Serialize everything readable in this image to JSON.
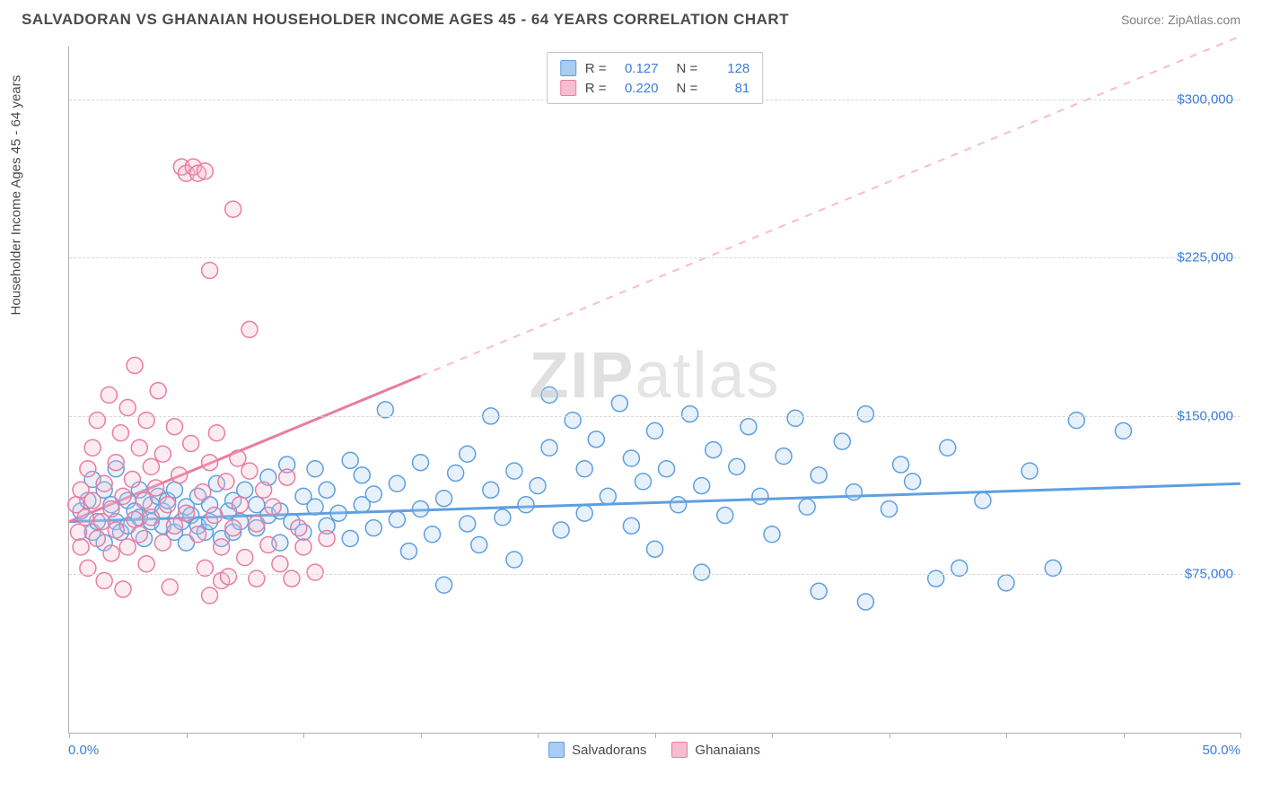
{
  "header": {
    "title": "SALVADORAN VS GHANAIAN HOUSEHOLDER INCOME AGES 45 - 64 YEARS CORRELATION CHART",
    "source": "Source: ZipAtlas.com"
  },
  "chart": {
    "type": "scatter",
    "ylabel": "Householder Income Ages 45 - 64 years",
    "watermark": "ZIPatlas",
    "background_color": "#ffffff",
    "grid_color": "#d8d8d8",
    "axis_color": "#b0b0b0",
    "tick_label_color": "#3b7dd8",
    "label_color": "#4a4a4a",
    "title_fontsize": 17,
    "label_fontsize": 15,
    "xlim": [
      0,
      50
    ],
    "ylim": [
      0,
      325000
    ],
    "yticks": [
      75000,
      150000,
      225000,
      300000
    ],
    "ytick_labels": [
      "$75,000",
      "$150,000",
      "$225,000",
      "$300,000"
    ],
    "xtick_positions": [
      0,
      5,
      10,
      15,
      20,
      25,
      30,
      35,
      40,
      45,
      50
    ],
    "xaxis_left_label": "0.0%",
    "xaxis_right_label": "50.0%",
    "marker_radius": 9,
    "marker_stroke_width": 1.5,
    "marker_fill_opacity": 0.28,
    "series": [
      {
        "name": "Salvadorans",
        "color_stroke": "#5e9fe0",
        "color_fill": "#a8cdf0",
        "R": "0.127",
        "N": "128",
        "trend": {
          "y_at_x0": 100000,
          "y_at_x50": 118000,
          "solid_until_x": 50,
          "dash_color": "#a8cdf0"
        },
        "points": [
          [
            0.5,
            105000
          ],
          [
            0.8,
            110000
          ],
          [
            1,
            95000
          ],
          [
            1,
            120000
          ],
          [
            1.2,
            100000
          ],
          [
            1.5,
            115000
          ],
          [
            1.5,
            90000
          ],
          [
            1.8,
            108000
          ],
          [
            2,
            100000
          ],
          [
            2,
            125000
          ],
          [
            2.2,
            95000
          ],
          [
            2.5,
            110000
          ],
          [
            2.5,
            98000
          ],
          [
            2.8,
            105000
          ],
          [
            3,
            102000
          ],
          [
            3,
            115000
          ],
          [
            3.2,
            92000
          ],
          [
            3.5,
            100000
          ],
          [
            3.5,
            108000
          ],
          [
            3.8,
            112000
          ],
          [
            4,
            98000
          ],
          [
            4,
            105000
          ],
          [
            4.2,
            110000
          ],
          [
            4.5,
            95000
          ],
          [
            4.5,
            115000
          ],
          [
            4.8,
            100000
          ],
          [
            5,
            90000
          ],
          [
            5,
            107000
          ],
          [
            5.2,
            103000
          ],
          [
            5.5,
            98000
          ],
          [
            5.5,
            112000
          ],
          [
            5.8,
            95000
          ],
          [
            6,
            100000
          ],
          [
            6,
            108000
          ],
          [
            6.3,
            118000
          ],
          [
            6.5,
            92000
          ],
          [
            6.8,
            105000
          ],
          [
            7,
            110000
          ],
          [
            7,
            95000
          ],
          [
            7.3,
            100000
          ],
          [
            7.5,
            115000
          ],
          [
            8,
            97000
          ],
          [
            8,
            108000
          ],
          [
            8.5,
            103000
          ],
          [
            8.5,
            121000
          ],
          [
            9,
            90000
          ],
          [
            9,
            105000
          ],
          [
            9.3,
            127000
          ],
          [
            9.5,
            100000
          ],
          [
            10,
            112000
          ],
          [
            10,
            95000
          ],
          [
            10.5,
            107000
          ],
          [
            10.5,
            125000
          ],
          [
            11,
            98000
          ],
          [
            11,
            115000
          ],
          [
            11.5,
            104000
          ],
          [
            12,
            129000
          ],
          [
            12,
            92000
          ],
          [
            12.5,
            108000
          ],
          [
            12.5,
            122000
          ],
          [
            13,
            97000
          ],
          [
            13,
            113000
          ],
          [
            13.5,
            153000
          ],
          [
            14,
            101000
          ],
          [
            14,
            118000
          ],
          [
            14.5,
            86000
          ],
          [
            15,
            106000
          ],
          [
            15,
            128000
          ],
          [
            15.5,
            94000
          ],
          [
            16,
            111000
          ],
          [
            16,
            70000
          ],
          [
            16.5,
            123000
          ],
          [
            17,
            99000
          ],
          [
            17,
            132000
          ],
          [
            17.5,
            89000
          ],
          [
            18,
            115000
          ],
          [
            18,
            150000
          ],
          [
            18.5,
            102000
          ],
          [
            19,
            124000
          ],
          [
            19,
            82000
          ],
          [
            19.5,
            108000
          ],
          [
            20,
            117000
          ],
          [
            20.5,
            135000
          ],
          [
            20.5,
            160000
          ],
          [
            21,
            96000
          ],
          [
            21.5,
            148000
          ],
          [
            22,
            104000
          ],
          [
            22,
            125000
          ],
          [
            22.5,
            139000
          ],
          [
            23,
            112000
          ],
          [
            23.5,
            156000
          ],
          [
            24,
            98000
          ],
          [
            24,
            130000
          ],
          [
            24.5,
            119000
          ],
          [
            25,
            143000
          ],
          [
            25,
            87000
          ],
          [
            25.5,
            125000
          ],
          [
            26,
            108000
          ],
          [
            26.5,
            151000
          ],
          [
            27,
            117000
          ],
          [
            27,
            76000
          ],
          [
            27.5,
            134000
          ],
          [
            28,
            103000
          ],
          [
            28.5,
            126000
          ],
          [
            29,
            145000
          ],
          [
            29.5,
            112000
          ],
          [
            30,
            94000
          ],
          [
            30.5,
            131000
          ],
          [
            31,
            149000
          ],
          [
            31.5,
            107000
          ],
          [
            32,
            122000
          ],
          [
            32,
            67000
          ],
          [
            33,
            138000
          ],
          [
            33.5,
            114000
          ],
          [
            34,
            151000
          ],
          [
            34,
            62000
          ],
          [
            35,
            106000
          ],
          [
            35.5,
            127000
          ],
          [
            36,
            119000
          ],
          [
            37,
            73000
          ],
          [
            37.5,
            135000
          ],
          [
            38,
            78000
          ],
          [
            39,
            110000
          ],
          [
            40,
            71000
          ],
          [
            41,
            124000
          ],
          [
            42,
            78000
          ],
          [
            43,
            148000
          ],
          [
            45,
            143000
          ]
        ]
      },
      {
        "name": "Ghanaians",
        "color_stroke": "#ea7ca0",
        "color_fill": "#f6bcd0",
        "R": "0.220",
        "N": "81",
        "trend": {
          "y_at_x0": 100000,
          "y_at_x50": 330000,
          "solid_until_x": 15,
          "dash_color": "#f6bcd0"
        },
        "points": [
          [
            0.3,
            108000
          ],
          [
            0.4,
            95000
          ],
          [
            0.5,
            115000
          ],
          [
            0.5,
            88000
          ],
          [
            0.7,
            102000
          ],
          [
            0.8,
            125000
          ],
          [
            0.8,
            78000
          ],
          [
            1,
            110000
          ],
          [
            1,
            135000
          ],
          [
            1.2,
            92000
          ],
          [
            1.2,
            148000
          ],
          [
            1.4,
            100000
          ],
          [
            1.5,
            118000
          ],
          [
            1.5,
            72000
          ],
          [
            1.7,
            160000
          ],
          [
            1.8,
            106000
          ],
          [
            1.8,
            85000
          ],
          [
            2,
            128000
          ],
          [
            2,
            96000
          ],
          [
            2.2,
            142000
          ],
          [
            2.3,
            112000
          ],
          [
            2.3,
            68000
          ],
          [
            2.5,
            154000
          ],
          [
            2.5,
            88000
          ],
          [
            2.7,
            120000
          ],
          [
            2.8,
            101000
          ],
          [
            2.8,
            174000
          ],
          [
            3,
            94000
          ],
          [
            3,
            135000
          ],
          [
            3.2,
            110000
          ],
          [
            3.3,
            148000
          ],
          [
            3.3,
            80000
          ],
          [
            3.5,
            126000
          ],
          [
            3.5,
            102000
          ],
          [
            3.7,
            116000
          ],
          [
            3.8,
            162000
          ],
          [
            4,
            90000
          ],
          [
            4,
            132000
          ],
          [
            4.2,
            108000
          ],
          [
            4.3,
            69000
          ],
          [
            4.5,
            145000
          ],
          [
            4.5,
            98000
          ],
          [
            4.7,
            122000
          ],
          [
            4.8,
            268000
          ],
          [
            5,
            104000
          ],
          [
            5,
            265000
          ],
          [
            5.2,
            137000
          ],
          [
            5.3,
            268000
          ],
          [
            5.5,
            94000
          ],
          [
            5.5,
            265000
          ],
          [
            5.7,
            114000
          ],
          [
            5.8,
            78000
          ],
          [
            5.8,
            266000
          ],
          [
            6,
            128000
          ],
          [
            6,
            65000
          ],
          [
            6,
            219000
          ],
          [
            6.2,
            103000
          ],
          [
            6.3,
            142000
          ],
          [
            6.5,
            88000
          ],
          [
            6.5,
            72000
          ],
          [
            6.7,
            119000
          ],
          [
            6.8,
            74000
          ],
          [
            7,
            97000
          ],
          [
            7,
            248000
          ],
          [
            7.2,
            130000
          ],
          [
            7.3,
            108000
          ],
          [
            7.5,
            83000
          ],
          [
            7.7,
            124000
          ],
          [
            7.7,
            191000
          ],
          [
            8,
            99000
          ],
          [
            8,
            73000
          ],
          [
            8.3,
            115000
          ],
          [
            8.5,
            89000
          ],
          [
            8.7,
            107000
          ],
          [
            9,
            80000
          ],
          [
            9.3,
            121000
          ],
          [
            9.5,
            73000
          ],
          [
            9.8,
            97000
          ],
          [
            10,
            88000
          ],
          [
            10.5,
            76000
          ],
          [
            11,
            92000
          ]
        ]
      }
    ],
    "bottom_legend": [
      {
        "label": "Salvadorans",
        "fill": "#a8cdf0",
        "stroke": "#5e9fe0"
      },
      {
        "label": "Ghanaians",
        "fill": "#f6bcd0",
        "stroke": "#ea7ca0"
      }
    ]
  }
}
